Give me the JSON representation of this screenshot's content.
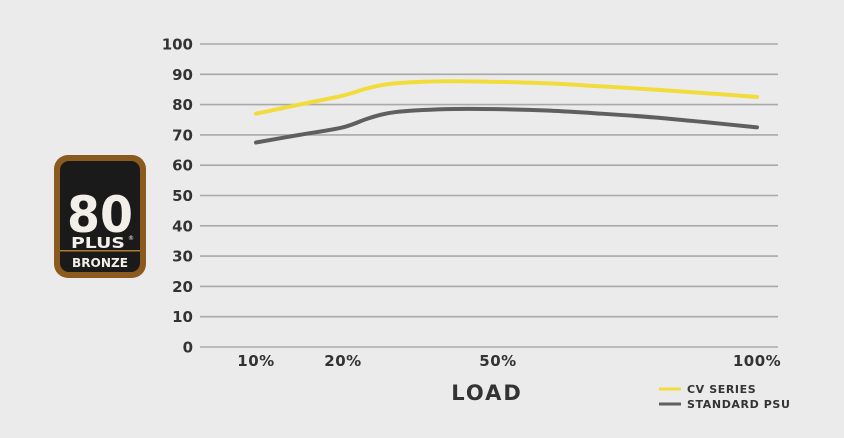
{
  "chart_data": {
    "type": "line",
    "xlabel": "LOAD",
    "ylabel": "",
    "ylim": [
      0,
      100
    ],
    "yticks": [
      0,
      10,
      20,
      30,
      40,
      50,
      60,
      70,
      80,
      90,
      100
    ],
    "x_tick_labels": [
      "10%",
      "20%",
      "50%",
      "100%"
    ],
    "grid": true,
    "legend_position": "bottom-right",
    "series": [
      {
        "name": "CV SERIES",
        "color": "#f2dc3b",
        "x": [
          10,
          15,
          20,
          25,
          30,
          40,
          50,
          60,
          70,
          80,
          90,
          100
        ],
        "values": [
          77,
          80,
          83,
          85.5,
          87,
          87.7,
          87.5,
          87,
          86,
          85,
          83.8,
          82.5
        ]
      },
      {
        "name": "STANDARD PSU",
        "color": "#5f5f5f",
        "x": [
          10,
          15,
          20,
          25,
          30,
          40,
          50,
          60,
          70,
          80,
          90,
          100
        ],
        "values": [
          67.5,
          70,
          72.5,
          75.5,
          77.5,
          78.5,
          78.5,
          78,
          77,
          75.8,
          74.2,
          72.5
        ]
      }
    ]
  },
  "badge": {
    "number": "80",
    "plus": "PLUS",
    "tier": "BRONZE",
    "colors": {
      "outer": "#8b5a1e",
      "inner": "#1a1a1a",
      "accent": "#b07a2d"
    }
  }
}
